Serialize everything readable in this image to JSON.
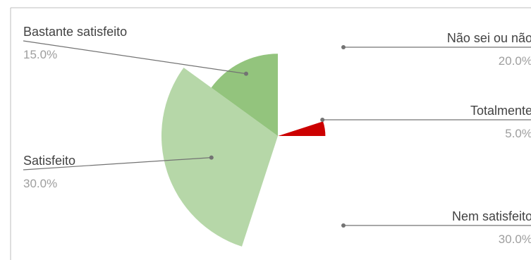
{
  "chart_data": {
    "type": "pie",
    "title": "",
    "style": "variable-radius pie, slices with zero value not drawn",
    "slices": [
      {
        "name": "Totalmente",
        "value": 5.0,
        "value_label": "5.0%",
        "color": "#cc0000",
        "label_side": "right"
      },
      {
        "name": "Nem satisfeito",
        "value": 30.0,
        "value_label": "30.0%",
        "color": "#ffffff",
        "label_side": "right"
      },
      {
        "name": "Satisfeito",
        "value": 30.0,
        "value_label": "30.0%",
        "color": "#b6d7a8",
        "label_side": "left"
      },
      {
        "name": "Bastante satisfeito",
        "value": 15.0,
        "value_label": "15.0%",
        "color": "#93c47d",
        "label_side": "left"
      },
      {
        "name": "Não sei ou não",
        "value": 20.0,
        "value_label": "20.0%",
        "color": "#ffffff",
        "label_side": "right"
      }
    ],
    "colors": {
      "leader_line": "#737373",
      "label_text": "#424242",
      "value_text": "#9e9e9e",
      "frame": "#bdbdbd"
    }
  }
}
